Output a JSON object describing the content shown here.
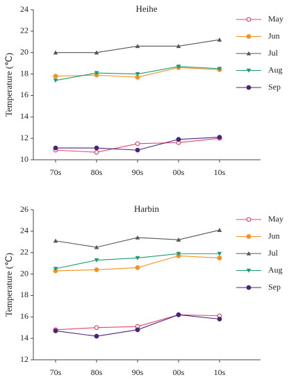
{
  "chart_data": [
    {
      "type": "line",
      "title": "Heihe",
      "y_label": "Temperature (℃)",
      "categories": [
        "70s",
        "80s",
        "90s",
        "00s",
        "10s"
      ],
      "ylim": [
        10,
        24
      ],
      "yticks": [
        10,
        12,
        14,
        16,
        18,
        20,
        22,
        24
      ],
      "legend": "top-right",
      "series": [
        {
          "name": "May",
          "color": "#e8416e",
          "marker": "open-circle",
          "values": [
            10.9,
            10.7,
            11.5,
            11.6,
            12.0
          ]
        },
        {
          "name": "Jun",
          "color": "#f5911e",
          "marker": "circle",
          "values": [
            17.8,
            17.9,
            17.7,
            18.6,
            18.4
          ]
        },
        {
          "name": "Jul",
          "color": "#555555",
          "marker": "triangle",
          "values": [
            20.0,
            20.0,
            20.6,
            20.6,
            21.2
          ]
        },
        {
          "name": "Aug",
          "color": "#1a9a72",
          "marker": "triangle-down",
          "values": [
            17.4,
            18.1,
            18.0,
            18.7,
            18.5
          ]
        },
        {
          "name": "Sep",
          "color": "#4a237a",
          "marker": "circle",
          "values": [
            11.1,
            11.1,
            10.9,
            11.9,
            12.1
          ]
        }
      ]
    },
    {
      "type": "line",
      "title": "Harbin",
      "y_label": "Temperature (℃)",
      "categories": [
        "70s",
        "80s",
        "90s",
        "00s",
        "10s"
      ],
      "ylim": [
        12,
        26
      ],
      "yticks": [
        12,
        14,
        16,
        18,
        20,
        22,
        24,
        26
      ],
      "legend": "top-right",
      "series": [
        {
          "name": "May",
          "color": "#e8416e",
          "marker": "open-circle",
          "values": [
            14.8,
            15.0,
            15.1,
            16.2,
            16.1
          ]
        },
        {
          "name": "Jun",
          "color": "#f5911e",
          "marker": "circle",
          "values": [
            20.3,
            20.4,
            20.6,
            21.7,
            21.5
          ]
        },
        {
          "name": "Jul",
          "color": "#555555",
          "marker": "triangle",
          "values": [
            23.1,
            22.5,
            23.4,
            23.2,
            24.1
          ]
        },
        {
          "name": "Aug",
          "color": "#1a9a72",
          "marker": "triangle-down",
          "values": [
            20.5,
            21.3,
            21.5,
            21.9,
            21.9
          ]
        },
        {
          "name": "Sep",
          "color": "#4a237a",
          "marker": "circle",
          "values": [
            14.7,
            14.2,
            14.8,
            16.2,
            15.8
          ]
        }
      ]
    }
  ]
}
